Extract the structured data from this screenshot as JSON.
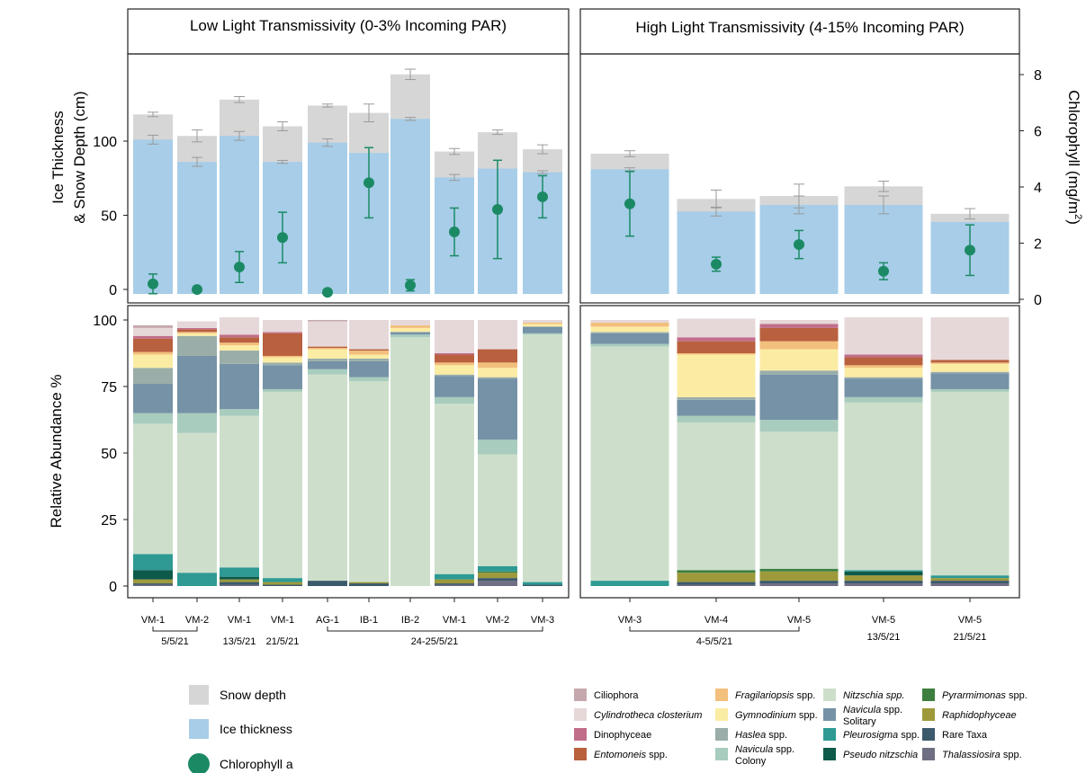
{
  "chart_data": [
    {
      "type": "bar",
      "panel": "top",
      "left_title": "Low Light Transmissivity (0-3% Incoming PAR)",
      "right_title": "High Light Transmissivity (4-15% Incoming PAR)",
      "ylabel_line1": "Ice Thickness",
      "ylabel_line2": "& Snow Depth (cm)",
      "y2label": "Chlorophyll (mg/m",
      "y2label_sup": "2",
      "y2label_end": ")",
      "yticks": [
        "0",
        "50",
        "100"
      ],
      "y2ticks": [
        "0",
        "2",
        "4",
        "6",
        "8"
      ],
      "ylim": [
        0,
        150
      ],
      "y2lim": [
        0,
        8
      ],
      "series_names": [
        "Snow depth",
        "Ice thickness",
        "Chlorophyll a"
      ],
      "left_bars": [
        {
          "ice": 101,
          "ice_err": 3,
          "total": 118,
          "total_err": 1.5,
          "chl": 0.55,
          "chl_err": 0.35
        },
        {
          "ice": 86,
          "ice_err": 3,
          "total": 103.5,
          "total_err": 4,
          "chl": 0.35,
          "chl_err": 0
        },
        {
          "ice": 103.5,
          "ice_err": 3,
          "total": 128,
          "total_err": 2,
          "chl": 1.15,
          "chl_err": 0.55
        },
        {
          "ice": 86,
          "ice_err": 1,
          "total": 110,
          "total_err": 3,
          "chl": 2.2,
          "chl_err": 0.9
        },
        {
          "ice": 99,
          "ice_err": 2.5,
          "total": 124,
          "total_err": 1,
          "chl": 0.25,
          "chl_err": 0
        },
        {
          "ice": 92,
          "ice_err": 0,
          "total": 119,
          "total_err": 6,
          "chl": 4.15,
          "chl_err": 1.25
        },
        {
          "ice": 115,
          "ice_err": 1,
          "total": 145,
          "total_err": 3.5,
          "chl": 0.5,
          "chl_err": 0.2
        },
        {
          "ice": 75.5,
          "ice_err": 2,
          "total": 93,
          "total_err": 2,
          "chl": 2.4,
          "chl_err": 0.85
        },
        {
          "ice": 81.5,
          "ice_err": 0,
          "total": 106,
          "total_err": 1.5,
          "chl": 3.2,
          "chl_err": 1.75
        },
        {
          "ice": 79,
          "ice_err": 1,
          "total": 94.5,
          "total_err": 3,
          "chl": 3.65,
          "chl_err": 0.75
        }
      ],
      "right_bars": [
        {
          "ice": 81,
          "ice_err": 1,
          "total": 91.5,
          "total_err": 2,
          "chl": 3.4,
          "chl_err": 1.15
        },
        {
          "ice": 52.5,
          "ice_err": 3,
          "total": 61,
          "total_err": 6,
          "chl": 1.25,
          "chl_err": 0.25
        },
        {
          "ice": 57,
          "ice_err": 6,
          "total": 63,
          "total_err": 8,
          "chl": 1.95,
          "chl_err": 0.5
        },
        {
          "ice": 57,
          "ice_err": 6,
          "total": 69.5,
          "total_err": 3.5,
          "chl": 1.0,
          "chl_err": 0.3
        },
        {
          "ice": 45.5,
          "ice_err": 0,
          "total": 51,
          "total_err": 3.5,
          "chl": 1.75,
          "chl_err": 0.9
        }
      ]
    },
    {
      "type": "bar",
      "panel": "bottom",
      "stacked": true,
      "ylabel": "Relative Abundance %",
      "yticks": [
        "0",
        "25",
        "50",
        "75",
        "100"
      ],
      "ylim": [
        0,
        100
      ],
      "categories_left": [
        "VM-1",
        "VM-2",
        "VM-1",
        "VM-1",
        "AG-1",
        "IB-1",
        "IB-2",
        "VM-1",
        "VM-2",
        "VM-3"
      ],
      "categories_right": [
        "VM-3",
        "VM-4",
        "VM-5",
        "VM-5",
        "VM-5"
      ],
      "date_groups_left": [
        {
          "label": "5/5/21",
          "bracket": true
        },
        {
          "label": "13/5/21",
          "bracket": false
        },
        {
          "label": "21/5/21",
          "bracket": false
        },
        {
          "label": "24-25/5/21",
          "bracket": true
        }
      ],
      "date_groups_right": [
        {
          "label": "4-5/5/21",
          "bracket": true
        },
        {
          "label": "13/5/21",
          "bracket": false
        },
        {
          "label": "21/5/21",
          "bracket": false
        }
      ],
      "taxa": [
        {
          "key": "ciliophora",
          "label": "Ciliophora",
          "italic": false,
          "color": "#c5a8ad"
        },
        {
          "key": "cylindrotheca",
          "label": "Cylindrotheca closterium",
          "italic": true,
          "color": "#e6d8d9"
        },
        {
          "key": "dinophyceae",
          "label": "Dinophyceae",
          "italic": false,
          "color": "#c06d8a"
        },
        {
          "key": "entomoneis",
          "label": "Entomoneis",
          "suffix": " spp.",
          "italic": true,
          "color": "#b9603f"
        },
        {
          "key": "fragilariopsis",
          "label": "Fragilariopsis",
          "suffix": " spp.",
          "italic": true,
          "color": "#f2bf7c"
        },
        {
          "key": "gymnodinium",
          "label": "Gymnodinium",
          "suffix": " spp.",
          "italic": true,
          "color": "#fbeca4"
        },
        {
          "key": "haslea",
          "label": "Haslea",
          "suffix": " spp.",
          "italic": true,
          "color": "#9aada8"
        },
        {
          "key": "navicula_col",
          "label": "Navicula",
          "suffix": " spp.",
          "label2": "Colony",
          "italic": true,
          "color": "#a8ccbd"
        },
        {
          "key": "nitzschia",
          "label": "Nitzschia spp.",
          "italic": true,
          "color": "#cddfcb"
        },
        {
          "key": "navicula_sol",
          "label": "Navicula",
          "suffix": " spp.",
          "label2": "Solitary",
          "italic": true,
          "color": "#7592a6"
        },
        {
          "key": "pleurosigma",
          "label": "Pleurosigma",
          "suffix": " spp.",
          "italic": true,
          "color": "#2e9a93"
        },
        {
          "key": "pseudonitzschia",
          "label": "Pseudo nitzschia",
          "italic": true,
          "color": "#0e5a4a"
        },
        {
          "key": "pyramimonas",
          "label": "Pyrarmimonas",
          "suffix": " spp.",
          "italic": true,
          "color": "#3e7f3f"
        },
        {
          "key": "raphidophyceae",
          "label": "Raphidophyceae",
          "italic": true,
          "color": "#9e9a3b"
        },
        {
          "key": "rare",
          "label": "Rare Taxa",
          "italic": false,
          "color": "#3c5a6c"
        },
        {
          "key": "thalassiosira",
          "label": "Thalassiosira",
          "suffix": " spp.",
          "italic": true,
          "color": "#6f6f83"
        }
      ],
      "stack_order": [
        "thalassiosira",
        "rare",
        "raphidophyceae",
        "pyramimonas",
        "pseudonitzschia",
        "pleurosigma",
        "nitzschia",
        "navicula_col",
        "navicula_sol",
        "haslea",
        "gymnodinium",
        "fragilariopsis",
        "entomoneis",
        "dinophyceae",
        "cylindrotheca",
        "ciliophora"
      ],
      "left_stacks": [
        {
          "thalassiosira": 0.5,
          "rare": 0.5,
          "raphidophyceae": 1.5,
          "pseudonitzschia": 3.5,
          "pleurosigma": 6,
          "nitzschia": 49,
          "navicula_col": 4,
          "navicula_sol": 11,
          "haslea": 6,
          "gymnodinium": 5,
          "fragilariopsis": 1,
          "entomoneis": 5,
          "dinophyceae": 1,
          "cylindrotheca": 3,
          "ciliophora": 1
        },
        {
          "pleurosigma": 5,
          "nitzschia": 52.5,
          "navicula_col": 7.5,
          "navicula_sol": 21.5,
          "haslea": 7.5,
          "gymnodinium": 1,
          "fragilariopsis": 0.5,
          "entomoneis": 1,
          "dinophyceae": 0.5,
          "cylindrotheca": 2.5
        },
        {
          "thalassiosira": 0.5,
          "rare": 1,
          "raphidophyceae": 1,
          "pseudonitzschia": 1,
          "pleurosigma": 3.5,
          "nitzschia": 57,
          "navicula_col": 2.5,
          "navicula_sol": 17,
          "haslea": 5,
          "gymnodinium": 2,
          "fragilariopsis": 1,
          "entomoneis": 2,
          "dinophyceae": 1,
          "cylindrotheca": 6.5
        },
        {
          "rare": 0.5,
          "raphidophyceae": 1,
          "pleurosigma": 1.5,
          "nitzschia": 70,
          "navicula_col": 1,
          "navicula_sol": 9,
          "haslea": 1,
          "gymnodinium": 2,
          "fragilariopsis": 0.5,
          "entomoneis": 8.5,
          "dinophyceae": 0.5,
          "cylindrotheca": 4.5
        },
        {
          "rare": 2,
          "nitzschia": 77.5,
          "navicula_col": 2,
          "navicula_sol": 3,
          "haslea": 1,
          "gymnodinium": 3.5,
          "fragilariopsis": 0.5,
          "entomoneis": 0.5,
          "cylindrotheca": 9.5,
          "ciliophora": 0.5
        },
        {
          "rare": 1,
          "raphidophyceae": 0.5,
          "nitzschia": 75.5,
          "navicula_col": 1.5,
          "navicula_sol": 6,
          "haslea": 1,
          "gymnodinium": 1.5,
          "fragilariopsis": 1.5,
          "entomoneis": 0.5,
          "cylindrotheca": 11
        },
        {
          "nitzschia": 93.5,
          "navicula_col": 1,
          "navicula_sol": 1,
          "gymnodinium": 1.5,
          "fragilariopsis": 1,
          "cylindrotheca": 2
        },
        {
          "thalassiosira": 0.5,
          "rare": 0.5,
          "raphidophyceae": 1.5,
          "pleurosigma": 2,
          "nitzschia": 64,
          "navicula_col": 2.5,
          "navicula_sol": 8,
          "haslea": 0.5,
          "gymnodinium": 3.5,
          "fragilariopsis": 1,
          "entomoneis": 3,
          "dinophyceae": 0.5,
          "cylindrotheca": 12.5
        },
        {
          "thalassiosira": 2,
          "rare": 1,
          "raphidophyceae": 2,
          "pyramimonas": 0.5,
          "pleurosigma": 2,
          "nitzschia": 42,
          "navicula_col": 5.5,
          "navicula_sol": 23,
          "haslea": 0.5,
          "gymnodinium": 3.5,
          "fragilariopsis": 2,
          "entomoneis": 5,
          "cylindrotheca": 11
        },
        {
          "rare": 0.5,
          "pleurosigma": 1,
          "nitzschia": 93,
          "navicula_col": 0.5,
          "navicula_sol": 2.5,
          "gymnodinium": 1,
          "fragilariopsis": 0.5,
          "cylindrotheca": 1
        }
      ],
      "right_stacks": [
        {
          "pleurosigma": 2,
          "nitzschia": 88,
          "navicula_col": 1,
          "navicula_sol": 4,
          "haslea": 0.5,
          "gymnodinium": 2,
          "fragilariopsis": 1.5,
          "cylindrotheca": 1
        },
        {
          "thalassiosira": 0.5,
          "rare": 1,
          "raphidophyceae": 3.5,
          "pyramimonas": 1,
          "nitzschia": 55.5,
          "navicula_col": 2.5,
          "navicula_sol": 6,
          "haslea": 1,
          "gymnodinium": 16,
          "fragilariopsis": 0.5,
          "entomoneis": 4.5,
          "dinophyceae": 1.5,
          "cylindrotheca": 7
        },
        {
          "thalassiosira": 1,
          "rare": 1,
          "raphidophyceae": 3.5,
          "pyramimonas": 1,
          "nitzschia": 51.5,
          "navicula_col": 4.5,
          "navicula_sol": 17,
          "haslea": 1.5,
          "gymnodinium": 8,
          "fragilariopsis": 3,
          "entomoneis": 5,
          "dinophyceae": 1.5,
          "cylindrotheca": 1.5
        },
        {
          "thalassiosira": 1,
          "rare": 1,
          "raphidophyceae": 2,
          "pseudonitzschia": 1.5,
          "pleurosigma": 0.5,
          "nitzschia": 63,
          "navicula_col": 2,
          "navicula_sol": 7,
          "haslea": 0.5,
          "gymnodinium": 3.5,
          "fragilariopsis": 1,
          "entomoneis": 3,
          "dinophyceae": 1,
          "cylindrotheca": 14
        },
        {
          "thalassiosira": 1,
          "rare": 1,
          "raphidophyceae": 1,
          "pleurosigma": 1,
          "nitzschia": 69,
          "navicula_col": 1,
          "navicula_sol": 6,
          "haslea": 0.5,
          "gymnodinium": 3,
          "fragilariopsis": 0.5,
          "entomoneis": 1,
          "cylindrotheca": 16
        }
      ]
    }
  ],
  "colors": {
    "snow": "#d6d6d6",
    "ice": "#a7cde8",
    "chl": "#1b8a64",
    "err_bar": "#9a9a9a",
    "err_chl": "#1b8a64"
  }
}
